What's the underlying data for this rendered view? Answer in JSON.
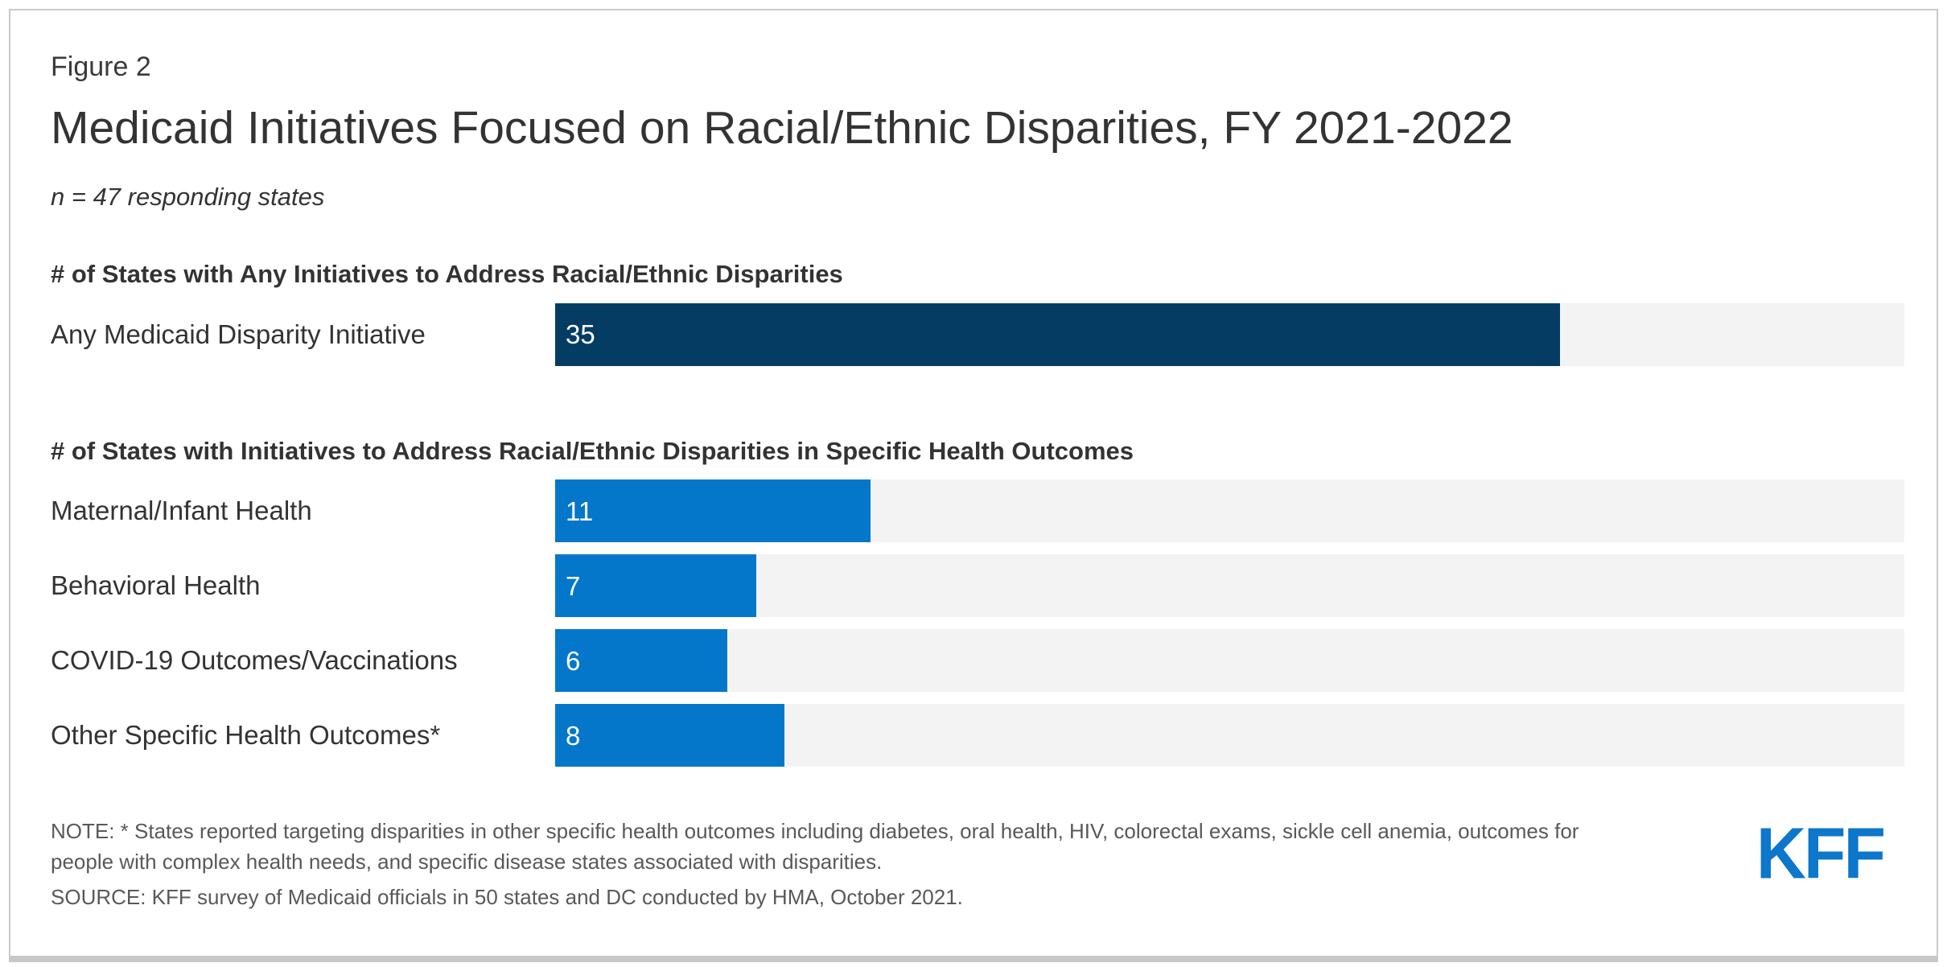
{
  "figure_label": "Figure 2",
  "title": "Medicaid Initiatives Focused on Racial/Ethnic Disparities, FY 2021-2022",
  "subtitle": "n = 47 responding states",
  "colors": {
    "navy": "#053C64",
    "blue": "#0477CB",
    "track_gray": "#F3F3F3",
    "logo_blue": "#0C77CB",
    "border_gray": "#C9C9C9"
  },
  "chart_data": {
    "type": "bar",
    "orientation": "horizontal",
    "xlim": [
      0,
      47
    ],
    "grid": false,
    "legend": false,
    "value_labels": "inside-left",
    "sections": [
      {
        "header": "# of States with Any Initiatives to Address Racial/Ethnic Disparities",
        "bars": [
          {
            "label": "Any Medicaid Disparity Initiative",
            "value": 35,
            "color": "#053C64"
          }
        ]
      },
      {
        "header": "# of States with Initiatives to Address Racial/Ethnic Disparities in Specific Health Outcomes",
        "bars": [
          {
            "label": "Maternal/Infant Health",
            "value": 11,
            "color": "#0477CB"
          },
          {
            "label": "Behavioral Health",
            "value": 7,
            "color": "#0477CB"
          },
          {
            "label": "COVID-19 Outcomes/Vaccinations",
            "value": 6,
            "color": "#0477CB"
          },
          {
            "label": "Other Specific Health Outcomes*",
            "value": 8,
            "color": "#0477CB"
          }
        ]
      }
    ]
  },
  "footer": {
    "note": "NOTE: * States reported targeting disparities in other specific health outcomes including diabetes, oral health, HIV, colorectal exams, sickle cell anemia, outcomes for people with complex health needs, and specific disease states associated with disparities.",
    "source": "SOURCE: KFF survey of Medicaid officials in 50 states and DC conducted by HMA, October 2021.",
    "logo_text": "KFF"
  }
}
